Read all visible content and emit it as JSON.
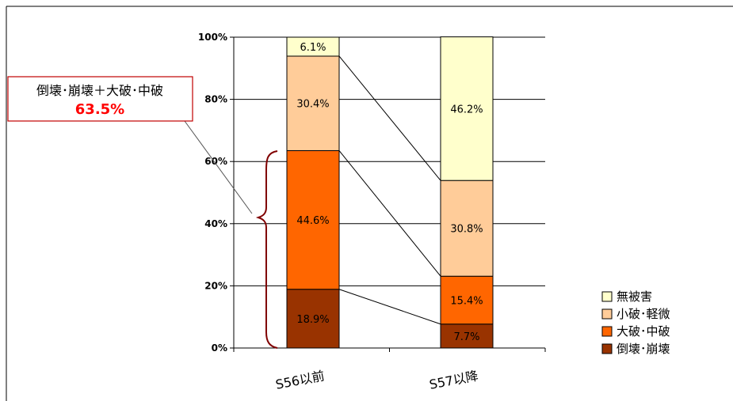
{
  "chart_data": {
    "type": "bar",
    "stacked": true,
    "categories": [
      "S56以前",
      "S57以降"
    ],
    "series": [
      {
        "name": "倒壊･崩壊",
        "values": [
          18.9,
          7.7
        ],
        "color": "#993300"
      },
      {
        "name": "大破･中破",
        "values": [
          44.6,
          15.4
        ],
        "color": "#FF6600"
      },
      {
        "name": "小破･軽微",
        "values": [
          30.4,
          30.8
        ],
        "color": "#FFCC99"
      },
      {
        "name": "無被害",
        "values": [
          6.1,
          46.2
        ],
        "color": "#FFFFCC"
      }
    ],
    "data_labels": [
      [
        "18.9%",
        "7.7%"
      ],
      [
        "44.6%",
        "15.4%"
      ],
      [
        "30.4%",
        "30.8%"
      ],
      [
        "6.1%",
        "46.2%"
      ]
    ],
    "yticks": [
      "0%",
      "20%",
      "40%",
      "60%",
      "80%",
      "100%"
    ],
    "ylim": [
      0,
      100
    ],
    "grid": true,
    "legend_position": "bottom-right",
    "legend": [
      "無被害",
      "小破･軽微",
      "大破･中破",
      "倒壊･崩壊"
    ],
    "annotation": {
      "title": "倒壊･崩壊＋大破･中破",
      "value": "63.5%",
      "value_color": "#FF0000",
      "border_color": "#C00000",
      "brace_color": "#800000"
    }
  }
}
